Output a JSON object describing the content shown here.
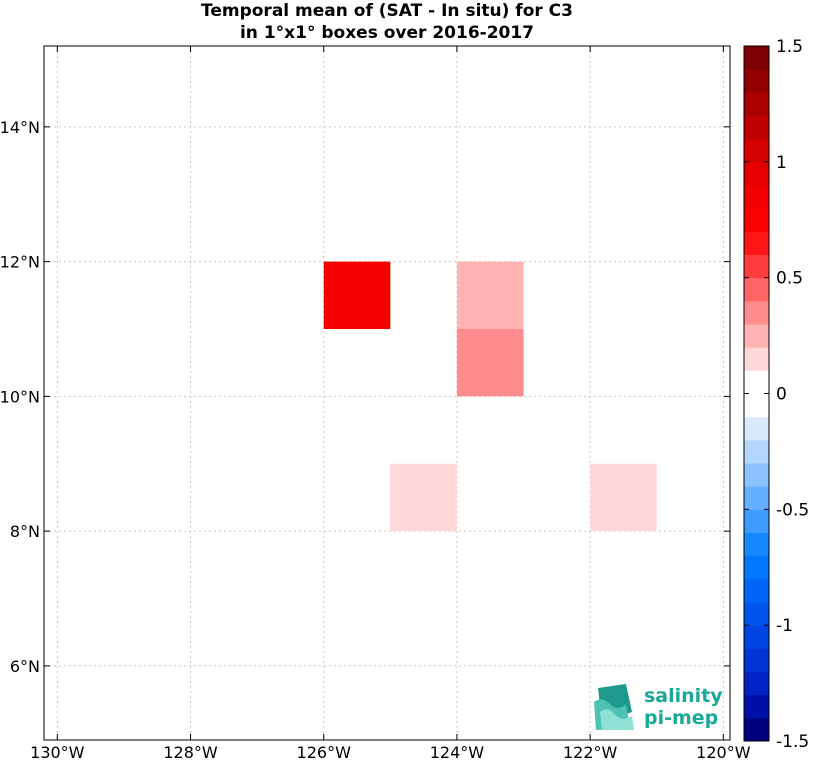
{
  "chart_data": {
    "type": "heatmap",
    "title": [
      "Temporal mean of (SAT - In situ) for C3",
      "in 1°x1° boxes over 2016-2017"
    ],
    "xlabel": "",
    "ylabel": "",
    "xlim": [
      -130.2,
      -119.9
    ],
    "ylim": [
      4.9,
      15.2
    ],
    "grid": true,
    "x_ticks": [
      {
        "value": -130,
        "label": "130°W"
      },
      {
        "value": -128,
        "label": "128°W"
      },
      {
        "value": -126,
        "label": "126°W"
      },
      {
        "value": -124,
        "label": "124°W"
      },
      {
        "value": -122,
        "label": "122°W"
      },
      {
        "value": -120,
        "label": "120°W"
      }
    ],
    "y_ticks": [
      {
        "value": 6,
        "label": "6°N"
      },
      {
        "value": 8,
        "label": "8°N"
      },
      {
        "value": 10,
        "label": "10°N"
      },
      {
        "value": 12,
        "label": "12°N"
      },
      {
        "value": 14,
        "label": "14°N"
      }
    ],
    "cells": [
      {
        "lon_min": -126,
        "lon_max": -125,
        "lat_min": 11,
        "lat_max": 12,
        "value": 0.85
      },
      {
        "lon_min": -124,
        "lon_max": -123,
        "lat_min": 11,
        "lat_max": 12,
        "value": 0.2
      },
      {
        "lon_min": -124,
        "lon_max": -123,
        "lat_min": 10,
        "lat_max": 11,
        "value": 0.35
      },
      {
        "lon_min": -125,
        "lon_max": -124,
        "lat_min": 8,
        "lat_max": 9,
        "value": 0.1
      },
      {
        "lon_min": -122,
        "lon_max": -121,
        "lat_min": 8,
        "lat_max": 9,
        "value": 0.1
      }
    ],
    "colorbar": {
      "min": -1.5,
      "max": 1.5,
      "levels": 30,
      "legend_position": "right",
      "ticks": [
        {
          "value": 1.5,
          "label": "1.5"
        },
        {
          "value": 1,
          "label": "1"
        },
        {
          "value": 0.5,
          "label": "0.5"
        },
        {
          "value": 0,
          "label": "0"
        },
        {
          "value": -0.5,
          "label": "-0.5"
        },
        {
          "value": -1,
          "label": "-1"
        },
        {
          "value": -1.5,
          "label": "-1.5"
        }
      ],
      "colors_low_to_high": [
        "#00007f",
        "#0011a8",
        "#0022c4",
        "#0033d6",
        "#0044e4",
        "#0055ef",
        "#0066f7",
        "#0077fd",
        "#1688ff",
        "#3d9cff",
        "#64afff",
        "#8cc2ff",
        "#b3d6ff",
        "#d9eaff",
        "#ffffff",
        "#ffffff",
        "#ffd9d9",
        "#ffb3b3",
        "#ff8c8c",
        "#ff6464",
        "#ff3d3d",
        "#ff1616",
        "#fd0000",
        "#f40000",
        "#e50000",
        "#d40000",
        "#c00000",
        "#aa0000",
        "#930000",
        "#7f0000"
      ]
    }
  },
  "logo": {
    "line1": "salinity",
    "line2": "pi-mep",
    "color": "#1aa898"
  }
}
